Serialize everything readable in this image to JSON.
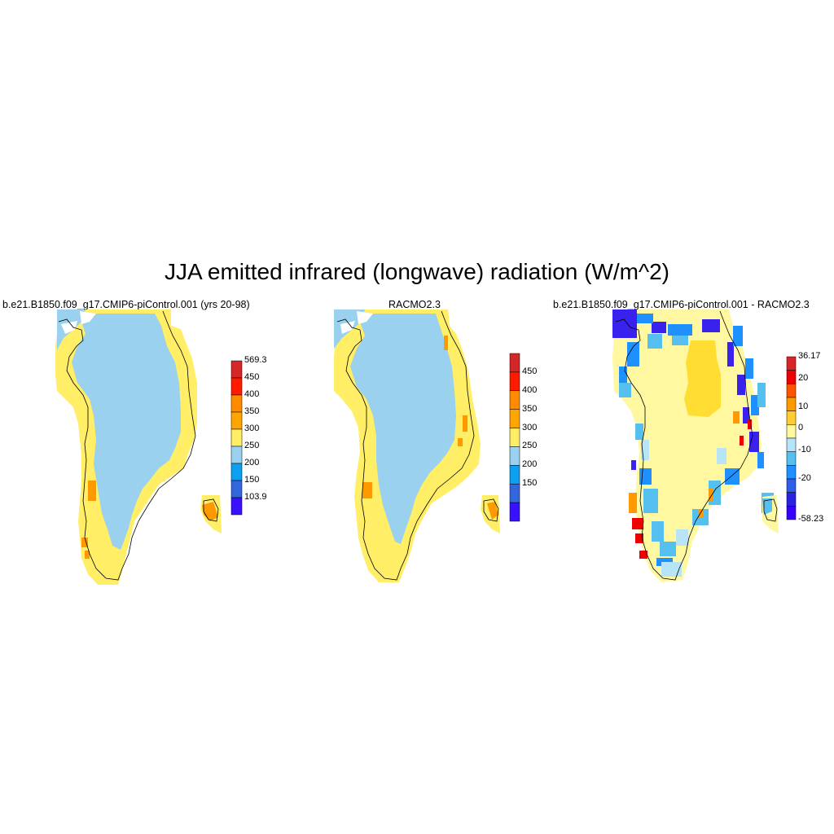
{
  "title": "JJA emitted infrared (longwave) radiation (W/m^2)",
  "panels": [
    {
      "title": "b.e21.B1850.f09_g17.CMIP6-piControl.001 (yrs 20-98)",
      "colorbar": {
        "labels": [
          "569.3",
          "450",
          "400",
          "350",
          "300",
          "250",
          "200",
          "150",
          "103.9"
        ],
        "colors": [
          "#d62728",
          "#ff1a00",
          "#ff8c00",
          "#ffa500",
          "#ffee66",
          "#99d1ee",
          "#0da0f0",
          "#3366dd",
          "#3a10ff"
        ]
      }
    },
    {
      "title": "RACMO2.3",
      "colorbar": {
        "labels": [
          "450",
          "400",
          "350",
          "300",
          "250",
          "200",
          "150"
        ],
        "colors": [
          "#d62728",
          "#ff1a00",
          "#ff8c00",
          "#ffa500",
          "#ffee66",
          "#99d1ee",
          "#0da0f0",
          "#3366dd",
          "#3a10ff"
        ]
      }
    },
    {
      "title": "b.e21.B1850.f09_g17.CMIP6-piControl.001 - RACMO2.3",
      "colorbar": {
        "labels": [
          "36.17",
          "20",
          "10",
          "0",
          "-10",
          "-20",
          "-58.23"
        ],
        "colors": [
          "#d62728",
          "#ee0000",
          "#ff5500",
          "#ff9900",
          "#ffcc33",
          "#fff8a0",
          "#b8e4f8",
          "#55c0f0",
          "#1e90ff",
          "#2c5ee8",
          "#2a22e0",
          "#3a00ff"
        ]
      }
    }
  ],
  "legend_colors": {
    "ice_sheet": "#99d1ee",
    "margin_warm": "#ffee66",
    "hot_spot": "#ff9900",
    "diff_background": "#fff8a0",
    "diff_center": "#ffdd33"
  }
}
